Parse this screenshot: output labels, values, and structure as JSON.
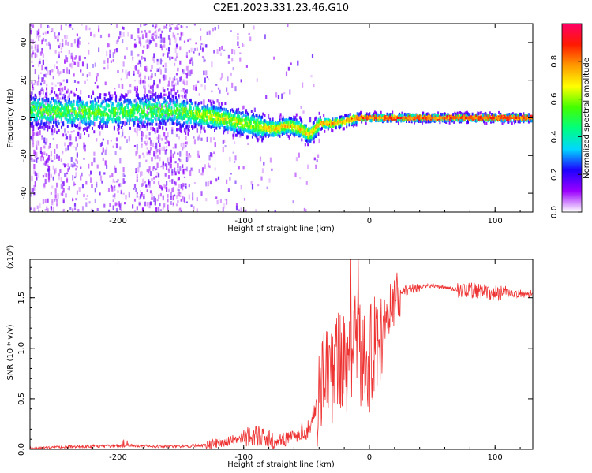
{
  "title": "C2E1.2023.331.23.46.G10",
  "chart_data": [
    {
      "type": "heatmap",
      "title": "C2E1.2023.331.23.46.G10",
      "xlabel": "Height of straight line (km)",
      "ylabel": "Frequency (Hz)",
      "xlim": [
        -270,
        130
      ],
      "ylim": [
        -50,
        50
      ],
      "xticks": [
        -200,
        -100,
        0,
        100
      ],
      "yticks": [
        -40,
        -20,
        0,
        20,
        40
      ],
      "colorbar": {
        "label": "Normalized spectral amplitude",
        "range": [
          0,
          1
        ],
        "ticks": [
          0.0,
          0.2,
          0.4,
          0.6,
          0.8
        ],
        "tick_labels": [
          "0.0",
          "0.2",
          "0.4",
          "0.6",
          "0.8"
        ],
        "colormap": [
          "#ffffff",
          "#9b00ff",
          "#1e00ff",
          "#00d7ff",
          "#00ff7f",
          "#43ff00",
          "#ffff00",
          "#ff9a00",
          "#ff1a00",
          "#ff0066"
        ]
      },
      "ridge": {
        "x": [
          -270,
          -240,
          -200,
          -160,
          -140,
          -120,
          -100,
          -85,
          -75,
          -65,
          -55,
          -48,
          -45,
          -40,
          -30,
          -20,
          -10,
          0,
          10,
          50,
          100,
          130
        ],
        "y": [
          4,
          3,
          3,
          4,
          2,
          0,
          -3,
          -5,
          -6,
          -4,
          -6,
          -9,
          -7,
          -3,
          -3,
          -2,
          0,
          0,
          0,
          0,
          0,
          0
        ]
      },
      "grid": false,
      "legend": "none"
    },
    {
      "type": "line",
      "xlabel": "Height of straight line (km)",
      "ylabel": "SNR (10 * v/v)",
      "y_multiplier_label": "(x10⁴)",
      "xlim": [
        -270,
        130
      ],
      "ylim": [
        0,
        1.88
      ],
      "xticks": [
        -200,
        -100,
        0,
        100
      ],
      "yticks": [
        0.0,
        0.5,
        1.0,
        1.5
      ],
      "ytick_labels": [
        "0.0",
        "0.5",
        "1.0",
        "1.5"
      ],
      "color": "#ee3333",
      "grid": false,
      "legend": "none",
      "series": [
        {
          "x": [
            -270,
            -250,
            -230,
            -210,
            -190,
            -170,
            -150,
            -130,
            -120,
            -110,
            -100,
            -90,
            -80,
            -70,
            -60,
            -50,
            -45,
            -40,
            -35,
            -30,
            -25,
            -20,
            -15,
            -10,
            -5,
            0,
            5,
            10,
            15,
            20,
            25,
            30,
            40,
            50,
            60,
            70,
            80,
            90,
            100,
            110,
            120,
            130
          ],
          "y": [
            0.01,
            0.02,
            0.03,
            0.03,
            0.04,
            0.03,
            0.03,
            0.04,
            0.06,
            0.09,
            0.12,
            0.14,
            0.1,
            0.09,
            0.12,
            0.2,
            0.3,
            0.55,
            0.75,
            0.7,
            0.95,
            0.85,
            1.0,
            1.1,
            0.9,
            0.85,
            1.1,
            1.2,
            1.35,
            1.48,
            1.55,
            1.58,
            1.61,
            1.62,
            1.6,
            1.58,
            1.57,
            1.57,
            1.55,
            1.54,
            1.54,
            1.54
          ]
        }
      ]
    }
  ]
}
